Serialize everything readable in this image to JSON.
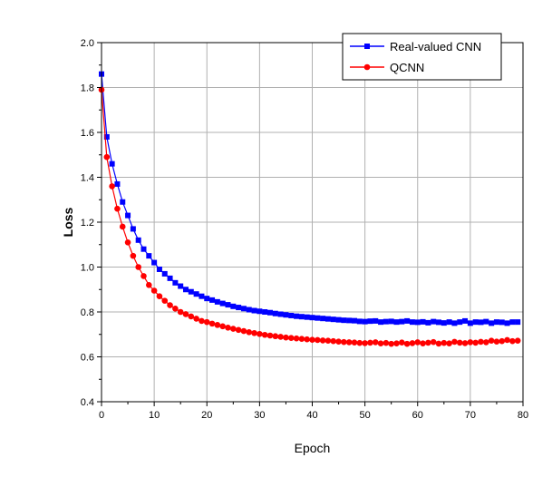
{
  "chart_data": {
    "type": "line",
    "title": "",
    "xlabel": "Epoch",
    "ylabel": "Loss",
    "xlim": [
      0,
      80
    ],
    "ylim": [
      0.4,
      2.0
    ],
    "x_ticks": [
      0,
      10,
      20,
      30,
      40,
      50,
      60,
      70,
      80
    ],
    "x_tick_labels": [
      "0",
      "10",
      "20",
      "30",
      "40",
      "50",
      "60",
      "70",
      "80"
    ],
    "y_ticks": [
      0.4,
      0.6,
      0.8,
      1.0,
      1.2,
      1.4,
      1.6,
      1.8,
      2.0
    ],
    "y_tick_labels": [
      "0.4",
      "0.6",
      "0.8",
      "1.0",
      "1.2",
      "1.4",
      "1.6",
      "1.8",
      "2.0"
    ],
    "grid": true,
    "legend_position": "top-right",
    "series": [
      {
        "name": "Real-valued CNN",
        "color": "#0000ff",
        "marker": "square",
        "x": [
          0,
          1,
          2,
          3,
          4,
          5,
          6,
          7,
          8,
          9,
          10,
          11,
          12,
          13,
          14,
          15,
          16,
          17,
          18,
          19,
          20,
          21,
          22,
          23,
          24,
          25,
          26,
          27,
          28,
          29,
          30,
          31,
          32,
          33,
          34,
          35,
          36,
          37,
          38,
          39,
          40,
          41,
          42,
          43,
          44,
          45,
          46,
          47,
          48,
          49,
          50,
          51,
          52,
          53,
          54,
          55,
          56,
          57,
          58,
          59,
          60,
          61,
          62,
          63,
          64,
          65,
          66,
          67,
          68,
          69,
          70,
          71,
          72,
          73,
          74,
          75,
          76,
          77,
          78,
          79
        ],
        "values": [
          1.86,
          1.58,
          1.46,
          1.37,
          1.29,
          1.23,
          1.17,
          1.12,
          1.08,
          1.05,
          1.02,
          0.99,
          0.97,
          0.95,
          0.93,
          0.915,
          0.9,
          0.89,
          0.88,
          0.87,
          0.86,
          0.853,
          0.845,
          0.838,
          0.832,
          0.825,
          0.82,
          0.815,
          0.81,
          0.806,
          0.803,
          0.8,
          0.797,
          0.793,
          0.79,
          0.787,
          0.784,
          0.781,
          0.779,
          0.777,
          0.775,
          0.773,
          0.771,
          0.769,
          0.767,
          0.765,
          0.763,
          0.762,
          0.761,
          0.758,
          0.757,
          0.759,
          0.76,
          0.755,
          0.757,
          0.758,
          0.755,
          0.757,
          0.76,
          0.755,
          0.754,
          0.756,
          0.752,
          0.757,
          0.754,
          0.751,
          0.755,
          0.75,
          0.755,
          0.76,
          0.75,
          0.755,
          0.754,
          0.757,
          0.75,
          0.755,
          0.754,
          0.75,
          0.755,
          0.755
        ]
      },
      {
        "name": "QCNN",
        "color": "#ff0000",
        "marker": "circle",
        "x": [
          0,
          1,
          2,
          3,
          4,
          5,
          6,
          7,
          8,
          9,
          10,
          11,
          12,
          13,
          14,
          15,
          16,
          17,
          18,
          19,
          20,
          21,
          22,
          23,
          24,
          25,
          26,
          27,
          28,
          29,
          30,
          31,
          32,
          33,
          34,
          35,
          36,
          37,
          38,
          39,
          40,
          41,
          42,
          43,
          44,
          45,
          46,
          47,
          48,
          49,
          50,
          51,
          52,
          53,
          54,
          55,
          56,
          57,
          58,
          59,
          60,
          61,
          62,
          63,
          64,
          65,
          66,
          67,
          68,
          69,
          70,
          71,
          72,
          73,
          74,
          75,
          76,
          77,
          78,
          79
        ],
        "values": [
          1.79,
          1.49,
          1.36,
          1.26,
          1.18,
          1.11,
          1.05,
          1.0,
          0.96,
          0.92,
          0.895,
          0.87,
          0.85,
          0.83,
          0.815,
          0.8,
          0.79,
          0.78,
          0.77,
          0.76,
          0.755,
          0.748,
          0.742,
          0.736,
          0.73,
          0.725,
          0.72,
          0.715,
          0.71,
          0.706,
          0.702,
          0.698,
          0.695,
          0.692,
          0.689,
          0.686,
          0.684,
          0.682,
          0.68,
          0.678,
          0.676,
          0.675,
          0.673,
          0.672,
          0.67,
          0.668,
          0.666,
          0.665,
          0.664,
          0.662,
          0.661,
          0.663,
          0.665,
          0.66,
          0.662,
          0.658,
          0.66,
          0.664,
          0.658,
          0.661,
          0.665,
          0.66,
          0.663,
          0.666,
          0.659,
          0.662,
          0.66,
          0.667,
          0.663,
          0.661,
          0.665,
          0.663,
          0.667,
          0.665,
          0.672,
          0.668,
          0.67,
          0.675,
          0.67,
          0.672
        ]
      }
    ]
  }
}
